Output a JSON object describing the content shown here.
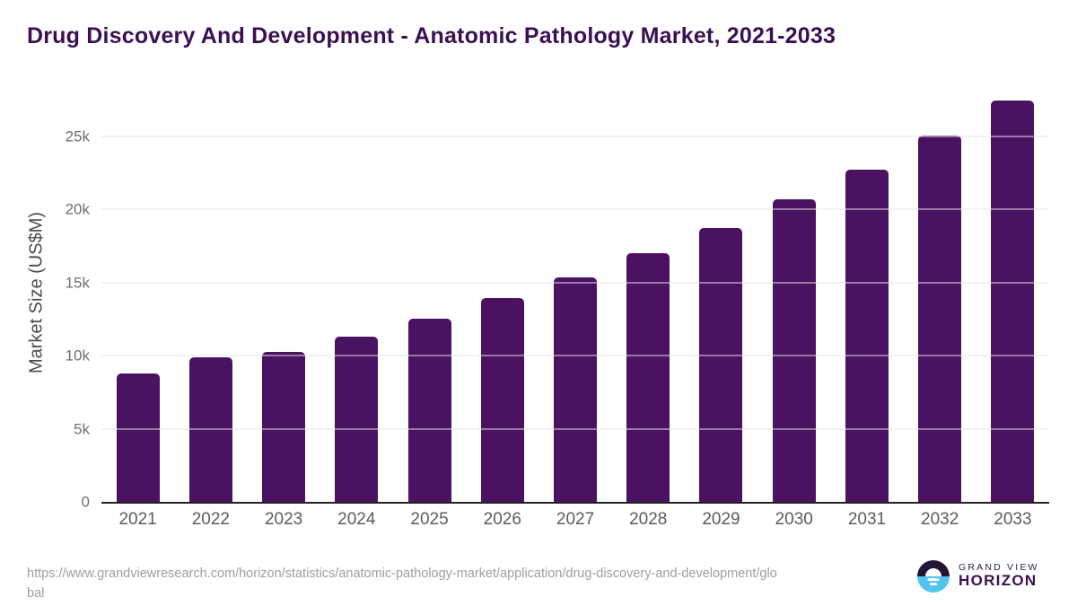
{
  "chart_data": {
    "type": "bar",
    "title": "Drug Discovery And Development - Anatomic Pathology Market, 2021-2033",
    "xlabel": "",
    "ylabel": "Market Size (US$M)",
    "categories": [
      "2021",
      "2022",
      "2023",
      "2024",
      "2025",
      "2026",
      "2027",
      "2028",
      "2029",
      "2030",
      "2031",
      "2032",
      "2033"
    ],
    "values": [
      8760,
      9900,
      10250,
      11330,
      12550,
      13940,
      15330,
      17040,
      18760,
      20700,
      22700,
      25050,
      27480
    ],
    "ylim": [
      0,
      28500
    ],
    "yticks": [
      {
        "value": 0,
        "label": "0"
      },
      {
        "value": 5000,
        "label": "5k"
      },
      {
        "value": 10000,
        "label": "10k"
      },
      {
        "value": 15000,
        "label": "15k"
      },
      {
        "value": 20000,
        "label": "20k"
      },
      {
        "value": 25000,
        "label": "25k"
      }
    ],
    "grid": "horizontal",
    "legend": "none",
    "bar_color": "#4a1261"
  },
  "footer": {
    "source_url_line1": "https://www.grandviewresearch.com/horizon/statistics/anatomic-pathology-market/application/drug-discovery-and-development/glo",
    "source_url_line2": "bal",
    "logo": {
      "brand_top": "GRAND VIEW",
      "brand_bottom": "HORIZON"
    }
  },
  "colors": {
    "title_text": "#3b1053",
    "bar": "#4a1261",
    "axis_line": "#222222",
    "gridline": "#e4e4e4",
    "y_tick_text": "#6f6f6f",
    "x_tick_text": "#5c5c5c",
    "source_text": "#9e9e9e",
    "logo_circle_top": "#241438",
    "logo_circle_bottom": "#55c3ef"
  }
}
